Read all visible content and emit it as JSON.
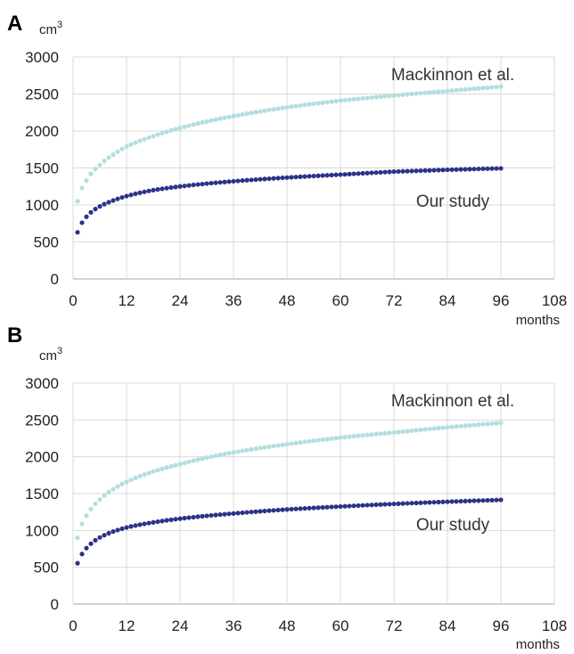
{
  "chart_data": [
    {
      "type": "scatter",
      "panel_label": "A",
      "y_unit_label": "cm",
      "y_unit_superscript": "3",
      "x_unit_label": "months",
      "xlim": [
        0,
        108
      ],
      "ylim": [
        0,
        3000
      ],
      "x_ticks": [
        "0",
        "12",
        "24",
        "36",
        "48",
        "60",
        "72",
        "84",
        "96",
        "108"
      ],
      "y_ticks": [
        "0",
        "500",
        "1000",
        "1500",
        "2000",
        "2500",
        "3000"
      ],
      "grid": true,
      "colors": {
        "mackinnon": "#b4dedd",
        "ours": "#2d3289"
      },
      "series": [
        {
          "name": "Mackinnon et al.",
          "x_start": 1,
          "x_end": 96,
          "x_step": 1,
          "anchors": [
            [
              1,
              1050
            ],
            [
              2,
              1230
            ],
            [
              3,
              1330
            ],
            [
              4,
              1420
            ],
            [
              6,
              1540
            ],
            [
              9,
              1680
            ],
            [
              12,
              1790
            ],
            [
              18,
              1930
            ],
            [
              24,
              2040
            ],
            [
              36,
              2200
            ],
            [
              48,
              2320
            ],
            [
              60,
              2410
            ],
            [
              72,
              2480
            ],
            [
              84,
              2540
            ],
            [
              96,
              2600
            ]
          ]
        },
        {
          "name": "Our study",
          "x_start": 1,
          "x_end": 96,
          "x_step": 1,
          "anchors": [
            [
              1,
              630
            ],
            [
              2,
              760
            ],
            [
              3,
              840
            ],
            [
              4,
              900
            ],
            [
              6,
              980
            ],
            [
              9,
              1060
            ],
            [
              12,
              1120
            ],
            [
              18,
              1200
            ],
            [
              24,
              1250
            ],
            [
              36,
              1320
            ],
            [
              48,
              1370
            ],
            [
              60,
              1410
            ],
            [
              72,
              1450
            ],
            [
              84,
              1475
            ],
            [
              96,
              1495
            ]
          ]
        }
      ]
    },
    {
      "type": "scatter",
      "panel_label": "B",
      "y_unit_label": "cm",
      "y_unit_superscript": "3",
      "x_unit_label": "months",
      "xlim": [
        0,
        108
      ],
      "ylim": [
        0,
        3000
      ],
      "x_ticks": [
        "0",
        "12",
        "24",
        "36",
        "48",
        "60",
        "72",
        "84",
        "96",
        "108"
      ],
      "y_ticks": [
        "0",
        "500",
        "1000",
        "1500",
        "2000",
        "2500",
        "3000"
      ],
      "grid": true,
      "colors": {
        "mackinnon": "#b4dedd",
        "ours": "#2d3289"
      },
      "series": [
        {
          "name": "Mackinnon et al.",
          "x_start": 1,
          "x_end": 96,
          "x_step": 1,
          "anchors": [
            [
              1,
              900
            ],
            [
              2,
              1090
            ],
            [
              3,
              1200
            ],
            [
              4,
              1290
            ],
            [
              6,
              1420
            ],
            [
              9,
              1560
            ],
            [
              12,
              1660
            ],
            [
              18,
              1800
            ],
            [
              24,
              1900
            ],
            [
              36,
              2060
            ],
            [
              48,
              2170
            ],
            [
              60,
              2260
            ],
            [
              72,
              2330
            ],
            [
              84,
              2400
            ],
            [
              96,
              2460
            ]
          ]
        },
        {
          "name": "Our study",
          "x_start": 1,
          "x_end": 96,
          "x_step": 1,
          "anchors": [
            [
              1,
              555
            ],
            [
              2,
              680
            ],
            [
              3,
              760
            ],
            [
              4,
              820
            ],
            [
              6,
              905
            ],
            [
              9,
              985
            ],
            [
              12,
              1040
            ],
            [
              18,
              1110
            ],
            [
              24,
              1160
            ],
            [
              36,
              1230
            ],
            [
              48,
              1285
            ],
            [
              60,
              1325
            ],
            [
              72,
              1360
            ],
            [
              84,
              1390
            ],
            [
              96,
              1415
            ]
          ]
        }
      ]
    }
  ]
}
